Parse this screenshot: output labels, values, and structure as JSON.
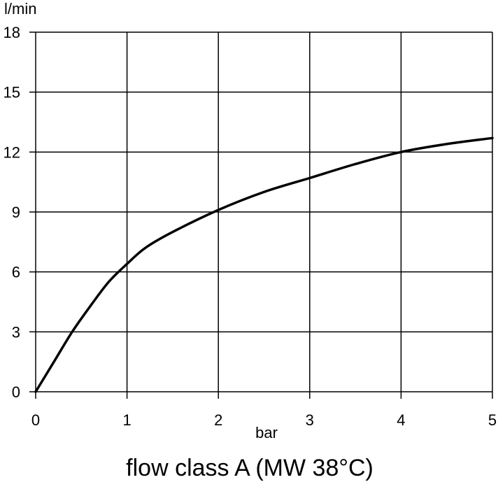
{
  "chart_data": {
    "type": "line",
    "title": "flow class A (MW 38°C)",
    "xlabel": "bar",
    "ylabel": "l/min",
    "xlim": [
      0,
      5
    ],
    "ylim": [
      0,
      18
    ],
    "x_ticks": [
      0,
      1,
      2,
      3,
      4,
      5
    ],
    "y_ticks": [
      0,
      3,
      6,
      9,
      12,
      15,
      18
    ],
    "grid": true,
    "series": [
      {
        "x": [
          0,
          0.2,
          0.4,
          0.6,
          0.8,
          1.0,
          1.2,
          1.5,
          2.0,
          2.5,
          3.0,
          3.5,
          4.0,
          4.5,
          5.0
        ],
        "y": [
          0,
          1.5,
          3.0,
          4.3,
          5.5,
          6.4,
          7.2,
          8.0,
          9.1,
          10.0,
          10.7,
          11.4,
          12.0,
          12.4,
          12.7
        ]
      }
    ]
  }
}
